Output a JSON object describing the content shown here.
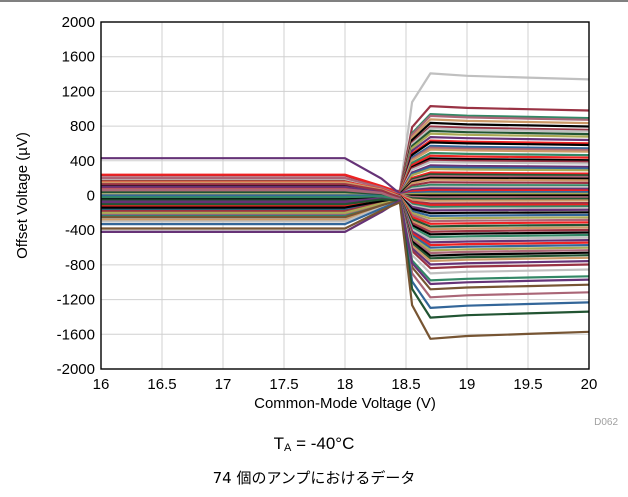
{
  "chart_data": {
    "type": "line",
    "title": "",
    "xlabel": "Common-Mode Voltage (V)",
    "ylabel": "Offset Voltage (µV)",
    "xlim": [
      16,
      20
    ],
    "ylim": [
      -2000,
      2000
    ],
    "x_ticks": [
      "16",
      "16.5",
      "17",
      "17.5",
      "18",
      "18.5",
      "19",
      "19.5",
      "20"
    ],
    "y_ticks": [
      "2000",
      "1600",
      "1200",
      "800",
      "400",
      "0",
      "-400",
      "-800",
      "-1200",
      "-1600",
      "-2000"
    ],
    "grid": true,
    "legend": "none",
    "figure_id": "D062",
    "series_count": 74,
    "sample_x": [
      16,
      17,
      18,
      18.3,
      18.45,
      18.55,
      18.7,
      19,
      19.5,
      20
    ],
    "series_shape": "each series holds a flat level for x <= 18.3, converges near 18.45, then settles to a flat level for x >= 18.7; values are [left_level, right_level] in µV",
    "series": [
      {
        "color": "#c0c0c0",
        "values": [
          80,
          1380
        ]
      },
      {
        "color": "#993344",
        "values": [
          180,
          1010
        ]
      },
      {
        "color": "#338866",
        "values": [
          -60,
          920
        ]
      },
      {
        "color": "#aa6677",
        "values": [
          120,
          900
        ]
      },
      {
        "color": "#cc9966",
        "values": [
          -150,
          860
        ]
      },
      {
        "color": "#000000",
        "values": [
          50,
          820
        ]
      },
      {
        "color": "#993344",
        "values": [
          230,
          780
        ]
      },
      {
        "color": "#c0c0c0",
        "values": [
          -120,
          760
        ]
      },
      {
        "color": "#225533",
        "values": [
          100,
          730
        ]
      },
      {
        "color": "#aaaa55",
        "values": [
          -30,
          700
        ]
      },
      {
        "color": "#663377",
        "values": [
          150,
          660
        ]
      },
      {
        "color": "#ee2222",
        "values": [
          240,
          620
        ]
      },
      {
        "color": "#000000",
        "values": [
          -200,
          600
        ]
      },
      {
        "color": "#336699",
        "values": [
          60,
          560
        ]
      },
      {
        "color": "#aa6677",
        "values": [
          -80,
          540
        ]
      },
      {
        "color": "#cc9966",
        "values": [
          170,
          520
        ]
      },
      {
        "color": "#338866",
        "values": [
          0,
          480
        ]
      },
      {
        "color": "#ee2222",
        "values": [
          200,
          450
        ]
      },
      {
        "color": "#000000",
        "values": [
          -160,
          420
        ]
      },
      {
        "color": "#993344",
        "values": [
          90,
          400
        ]
      },
      {
        "color": "#c0c0c0",
        "values": [
          -40,
          380
        ]
      },
      {
        "color": "#663377",
        "values": [
          130,
          340
        ]
      },
      {
        "color": "#336699",
        "values": [
          -220,
          320
        ]
      },
      {
        "color": "#aaaa55",
        "values": [
          40,
          300
        ]
      },
      {
        "color": "#ee2222",
        "values": [
          -100,
          260
        ]
      },
      {
        "color": "#225533",
        "values": [
          180,
          240
        ]
      },
      {
        "color": "#aa6677",
        "values": [
          -10,
          220
        ]
      },
      {
        "color": "#000000",
        "values": [
          110,
          200
        ]
      },
      {
        "color": "#cc9966",
        "values": [
          -190,
          180
        ]
      },
      {
        "color": "#993344",
        "values": [
          70,
          150
        ]
      },
      {
        "color": "#338866",
        "values": [
          -60,
          120
        ]
      },
      {
        "color": "#c0c0c0",
        "values": [
          190,
          100
        ]
      },
      {
        "color": "#663377",
        "values": [
          430,
          80
        ]
      },
      {
        "color": "#ee2222",
        "values": [
          -130,
          60
        ]
      },
      {
        "color": "#336699",
        "values": [
          20,
          40
        ]
      },
      {
        "color": "#aaaa55",
        "values": [
          140,
          20
        ]
      },
      {
        "color": "#000000",
        "values": [
          -70,
          0
        ]
      },
      {
        "color": "#aa6677",
        "values": [
          200,
          -20
        ]
      },
      {
        "color": "#225533",
        "values": [
          -170,
          -40
        ]
      },
      {
        "color": "#cc9966",
        "values": [
          80,
          -60
        ]
      },
      {
        "color": "#993344",
        "values": [
          -20,
          -90
        ]
      },
      {
        "color": "#ee2222",
        "values": [
          160,
          -110
        ]
      },
      {
        "color": "#338866",
        "values": [
          -240,
          -130
        ]
      },
      {
        "color": "#c0c0c0",
        "values": [
          30,
          -150
        ]
      },
      {
        "color": "#663377",
        "values": [
          -90,
          -170
        ]
      },
      {
        "color": "#000000",
        "values": [
          120,
          -200
        ]
      },
      {
        "color": "#336699",
        "values": [
          -150,
          -230
        ]
      },
      {
        "color": "#aaaa55",
        "values": [
          10,
          -260
        ]
      },
      {
        "color": "#aa6677",
        "values": [
          -210,
          -290
        ]
      },
      {
        "color": "#ee2222",
        "values": [
          90,
          -320
        ]
      },
      {
        "color": "#225533",
        "values": [
          -50,
          -350
        ]
      },
      {
        "color": "#cc9966",
        "values": [
          150,
          -380
        ]
      },
      {
        "color": "#993344",
        "values": [
          -180,
          -410
        ]
      },
      {
        "color": "#000000",
        "values": [
          -30,
          -440
        ]
      },
      {
        "color": "#338866",
        "values": [
          60,
          -470
        ]
      },
      {
        "color": "#c0c0c0",
        "values": [
          -260,
          -500
        ]
      },
      {
        "color": "#663377",
        "values": [
          100,
          -530
        ]
      },
      {
        "color": "#ee2222",
        "values": [
          -110,
          -560
        ]
      },
      {
        "color": "#336699",
        "values": [
          0,
          -590
        ]
      },
      {
        "color": "#aaaa55",
        "values": [
          -200,
          -620
        ]
      },
      {
        "color": "#aa6677",
        "values": [
          70,
          -650
        ]
      },
      {
        "color": "#000000",
        "values": [
          -140,
          -680
        ]
      },
      {
        "color": "#225533",
        "values": [
          40,
          -710
        ]
      },
      {
        "color": "#cc9966",
        "values": [
          -280,
          -740
        ]
      },
      {
        "color": "#663377",
        "values": [
          -70,
          -780
        ]
      },
      {
        "color": "#993344",
        "values": [
          130,
          -820
        ]
      },
      {
        "color": "#c0c0c0",
        "values": [
          -300,
          -880
        ]
      },
      {
        "color": "#338866",
        "values": [
          -20,
          -960
        ]
      },
      {
        "color": "#775533",
        "values": [
          -250,
          -1060
        ]
      },
      {
        "color": "#aa6677",
        "values": [
          60,
          -1150
        ]
      },
      {
        "color": "#336699",
        "values": [
          -330,
          -1270
        ]
      },
      {
        "color": "#225533",
        "values": [
          -100,
          -1380
        ]
      },
      {
        "color": "#663377",
        "values": [
          -420,
          -1000
        ]
      },
      {
        "color": "#775533",
        "values": [
          -380,
          -1620
        ]
      }
    ]
  },
  "caption": {
    "temperature_symbol": "T",
    "temperature_subscript": "A",
    "temperature_value": " = -40°C",
    "amp_count_text": "74 個のアンプにおけるデータ"
  }
}
